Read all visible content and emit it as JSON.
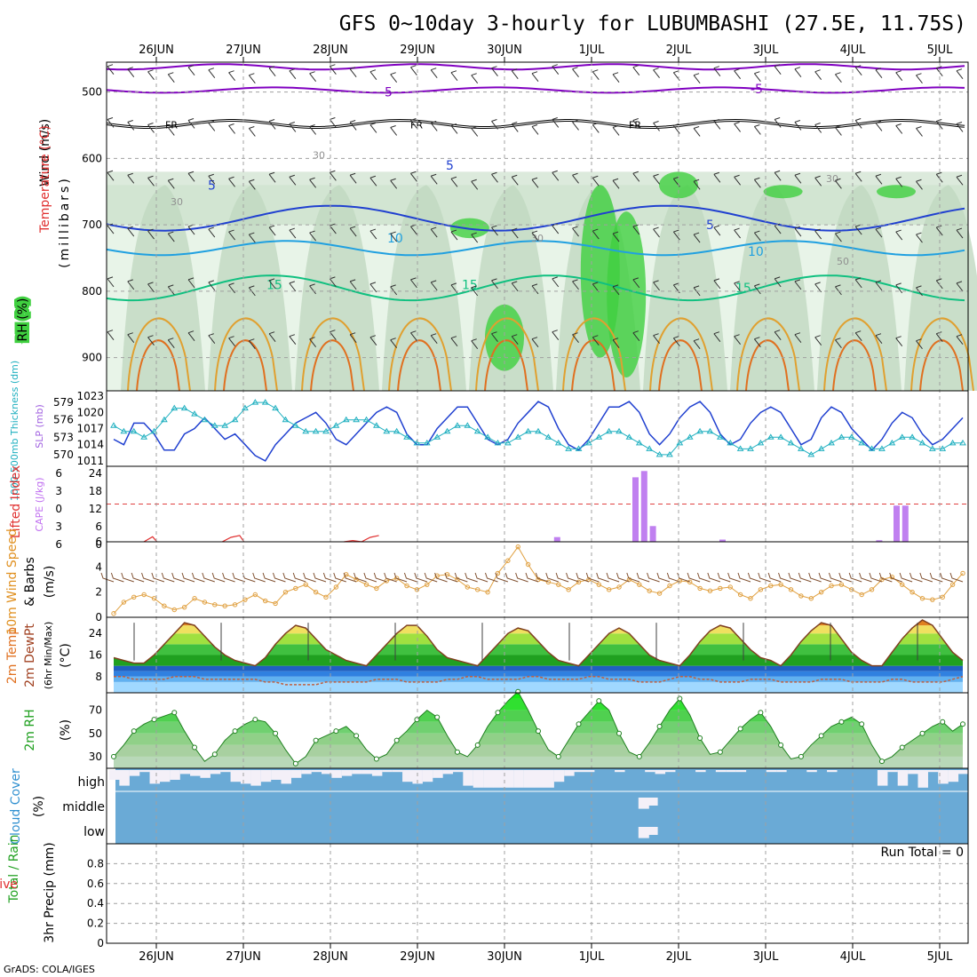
{
  "header": {
    "title": "GFS 0~10day 3-hourly for LUBUMBASHI (27.5E, 11.75S)",
    "credit": "GrADS: COLA/IGES",
    "dates": [
      "26JUN",
      "27JUN",
      "28JUN",
      "29JUN",
      "30JUN",
      "1JUL",
      "2JUL",
      "3JUL",
      "4JUL",
      "5JUL"
    ]
  },
  "colors": {
    "frame": "#000000",
    "grid": "#a0a0a0",
    "purple": "#8000c0",
    "freezing": "#000000",
    "blue_dark": "#2040d0",
    "blue_mid": "#20a0e0",
    "green_contour": "#10c080",
    "orange_contour": "#e0a030",
    "rh_light": "#e8f4e8",
    "rh_mid": "#c0d8c0",
    "rh_green": "#40d040",
    "slp": "#2040d0",
    "thickness": "#20b0c0",
    "cape": "#c080f0",
    "li": "#e03030",
    "wind10m": "#e0a040",
    "barb": "#805030",
    "temp_fill": "#40c040",
    "dew_fill": "#3080e0",
    "rh2m": "#40c040",
    "cloud_sky": "#6aaad6",
    "cloud_cover": "#f4f0f8"
  },
  "panels": {
    "upper": {
      "ylabel_wind": "Wind (m/s)",
      "ylabel_temp": "Temperature (°C)",
      "ylabel_rh": "RH (%)",
      "ylabel_p": "(millibars)",
      "pressure_ticks": [
        "500",
        "600",
        "700",
        "800",
        "900"
      ],
      "contour_labels": {
        "t_m5": "-5",
        "t_5": "5",
        "t_10": "10",
        "t_15": "15",
        "fr": "FR",
        "rh30": "30",
        "rh50": "50"
      }
    },
    "slp": {
      "ylabel_slp": "SLP (mb)",
      "ylabel_thk": "1000-500mb Thickness (dm)",
      "left_ticks": [
        "579",
        "576",
        "573",
        "570"
      ],
      "right_ticks": [
        "1023",
        "1020",
        "1017",
        "1014",
        "1011"
      ]
    },
    "cape": {
      "ylabel_cape": "CAPE (J/kg)",
      "ylabel_li": "Lifted Index",
      "left_ticks": [
        "6",
        "3",
        "0",
        "3",
        "6"
      ],
      "right_ticks": [
        "24",
        "18",
        "12",
        "6",
        "0"
      ]
    },
    "wind": {
      "ylabel_speed": "10m Wind Speed",
      "ylabel_barbs": "& Barbs",
      "ylabel_unit": "(m/s)",
      "ticks": [
        "6",
        "4",
        "2",
        "0"
      ]
    },
    "temp": {
      "ylabel_a": "2m Temp",
      "ylabel_b": "2m DewPt",
      "ylabel_c": "(6hr Min/Max)",
      "ylabel_unit": "(°C)",
      "ticks": [
        "24",
        "16",
        "8"
      ]
    },
    "rh": {
      "ylabel": "2m RH",
      "ylabel_unit": "(%)",
      "ticks": [
        "70",
        "50",
        "30"
      ]
    },
    "cloud": {
      "ylabel": "Cloud Cover",
      "ylabel_unit": "(%)",
      "layers": [
        "high",
        "middle",
        "low"
      ]
    },
    "precip": {
      "ylabel_a": "Total / Rain",
      "ylabel_b": "Convective",
      "ylabel_c": "3hr Precip (mm)",
      "ticks": [
        "0.8",
        "0.6",
        "0.4",
        "0.2",
        "0"
      ],
      "run_total": "Run Total = 0"
    }
  },
  "chart_data": [
    {
      "type": "line",
      "title": "Wind / Temperature / RH cross-section",
      "y_units": "mb",
      "ylim": [
        950,
        450
      ],
      "series": [
        {
          "name": "-5 °C isotherm",
          "level_approx": 500
        },
        {
          "name": "FR (0 °C)",
          "level_approx": 550
        },
        {
          "name": "5 °C isotherm",
          "level_approx": 690
        },
        {
          "name": "10 °C isotherm",
          "level_approx": 730
        },
        {
          "name": "15 °C isotherm",
          "level_approx": 790
        }
      ]
    },
    {
      "type": "line",
      "title": "SLP and 1000-500mb Thickness",
      "series": [
        {
          "name": "SLP (mb)",
          "ylim": [
            1011,
            1023
          ],
          "values": [
            1015,
            1014,
            1018,
            1018,
            1016,
            1013,
            1013,
            1016,
            1017,
            1019,
            1017,
            1015,
            1016,
            1014,
            1012,
            1011,
            1014,
            1016,
            1018,
            1019,
            1020,
            1018,
            1015,
            1014,
            1016,
            1018,
            1020,
            1021,
            1020,
            1016,
            1014,
            1014,
            1017,
            1019,
            1021,
            1021,
            1018,
            1015,
            1014,
            1015,
            1018,
            1020,
            1022,
            1021,
            1017,
            1014,
            1013,
            1015,
            1018,
            1021,
            1021,
            1022,
            1020,
            1016,
            1014,
            1016,
            1019,
            1021,
            1022,
            1020,
            1016,
            1014,
            1015,
            1018,
            1020,
            1021,
            1020,
            1017,
            1014,
            1015,
            1019,
            1021,
            1020,
            1017,
            1015,
            1013,
            1015,
            1018,
            1020,
            1019,
            1016,
            1014,
            1015,
            1017,
            1019
          ]
        },
        {
          "name": "Thickness (dm)",
          "ylim": [
            569,
            580
          ],
          "values": [
            575,
            574,
            574,
            573,
            574,
            576,
            578,
            578,
            577,
            576,
            575,
            575,
            576,
            578,
            579,
            579,
            578,
            576,
            575,
            574,
            574,
            574,
            575,
            576,
            576,
            576,
            575,
            574,
            574,
            573,
            572,
            572,
            573,
            574,
            575,
            575,
            574,
            573,
            572,
            572,
            573,
            574,
            574,
            573,
            572,
            571,
            571,
            572,
            573,
            574,
            574,
            573,
            572,
            571,
            570,
            570,
            572,
            573,
            574,
            574,
            573,
            572,
            571,
            571,
            572,
            573,
            573,
            572,
            571,
            570,
            571,
            572,
            573,
            573,
            572,
            571,
            571,
            572,
            573,
            573,
            572,
            571,
            571,
            572,
            572
          ]
        }
      ]
    },
    {
      "type": "bar",
      "title": "CAPE and Lifted Index",
      "series": [
        {
          "name": "CAPE (J/kg)",
          "ylim": [
            0,
            24
          ],
          "bars": [
            {
              "day": 4.6,
              "value": 1.5
            },
            {
              "day": 5.5,
              "value": 20.5
            },
            {
              "day": 5.6,
              "value": 22.5
            },
            {
              "day": 5.7,
              "value": 5
            },
            {
              "day": 6.5,
              "value": 0.7
            },
            {
              "day": 8.3,
              "value": 0.5
            },
            {
              "day": 8.5,
              "value": 11.5
            },
            {
              "day": 8.6,
              "value": 11.5
            }
          ]
        },
        {
          "name": "Lifted Index",
          "ylim": [
            6,
            -6
          ],
          "segments": [
            [
              0.0,
              6
            ],
            [
              0.1,
              5.2
            ],
            [
              0.15,
              6
            ],
            [
              0.9,
              6
            ],
            [
              1.0,
              5.3
            ],
            [
              1.1,
              5
            ],
            [
              1.15,
              6
            ],
            [
              2.0,
              5.8
            ],
            [
              2.1,
              6
            ],
            [
              2.3,
              6
            ],
            [
              2.4,
              5.8
            ],
            [
              2.5,
              6
            ],
            [
              2.6,
              5.3
            ],
            [
              2.7,
              5
            ]
          ]
        }
      ]
    },
    {
      "type": "line",
      "title": "10m Wind Speed",
      "ylim": [
        0,
        6
      ],
      "values": [
        0.3,
        1.2,
        1.6,
        1.8,
        1.5,
        0.9,
        0.6,
        0.8,
        1.5,
        1.2,
        1.0,
        0.9,
        1.0,
        1.4,
        1.8,
        1.3,
        1.1,
        2.0,
        2.3,
        2.6,
        2.0,
        1.6,
        2.4,
        3.4,
        3.0,
        2.6,
        2.3,
        2.9,
        3.1,
        2.5,
        2.2,
        2.6,
        3.3,
        3.4,
        3.0,
        2.4,
        2.2,
        2.0,
        3.5,
        4.5,
        5.6,
        4.2,
        3.0,
        2.8,
        2.6,
        2.2,
        2.8,
        3.0,
        2.6,
        2.2,
        2.4,
        3.0,
        2.6,
        2.1,
        1.9,
        2.5,
        2.9,
        2.8,
        2.3,
        2.1,
        2.3,
        2.4,
        1.8,
        1.5,
        2.2,
        2.5,
        2.6,
        2.2,
        1.7,
        1.5,
        2.0,
        2.5,
        2.6,
        2.2,
        1.8,
        2.2,
        3.0,
        3.2,
        2.6,
        2.0,
        1.5,
        1.4,
        1.6,
        2.6,
        3.5
      ]
    },
    {
      "type": "area",
      "title": "2m Temp / DewPt",
      "ylim": [
        2,
        30
      ],
      "series": [
        {
          "name": "2m Temp",
          "values": [
            15,
            14,
            13,
            13,
            16,
            20,
            24,
            28,
            27,
            23,
            19,
            16,
            14,
            13,
            12,
            15,
            20,
            24,
            27,
            26,
            22,
            18,
            16,
            14,
            13,
            12,
            16,
            20,
            24,
            27,
            27,
            23,
            18,
            15,
            14,
            13,
            12,
            16,
            20,
            24,
            26,
            25,
            21,
            17,
            14,
            13,
            12,
            16,
            20,
            24,
            26,
            24,
            20,
            16,
            14,
            13,
            12,
            16,
            21,
            25,
            27,
            26,
            22,
            18,
            15,
            14,
            12,
            16,
            21,
            25,
            28,
            27,
            22,
            17,
            14,
            12,
            12,
            17,
            22,
            26,
            29,
            27,
            22,
            17,
            14
          ]
        },
        {
          "name": "2m DewPt",
          "values": [
            8,
            8,
            7,
            7,
            7,
            7,
            8,
            8,
            8,
            7,
            7,
            7,
            7,
            7,
            7,
            6,
            6,
            5,
            5,
            5,
            5,
            6,
            6,
            6,
            6,
            6,
            7,
            7,
            7,
            6,
            6,
            6,
            6,
            7,
            7,
            8,
            8,
            7,
            7,
            7,
            7,
            8,
            8,
            7,
            7,
            7,
            7,
            8,
            8,
            7,
            7,
            7,
            6,
            6,
            6,
            7,
            8,
            8,
            7,
            7,
            6,
            6,
            6,
            7,
            7,
            7,
            6,
            6,
            6,
            6,
            7,
            7,
            7,
            6,
            6,
            6,
            6,
            7,
            7,
            6,
            6,
            6,
            6,
            7,
            8
          ]
        }
      ]
    },
    {
      "type": "area",
      "title": "2m RH",
      "ylim": [
        20,
        85
      ],
      "values": [
        30,
        40,
        52,
        58,
        62,
        65,
        68,
        52,
        38,
        26,
        32,
        44,
        52,
        58,
        62,
        60,
        50,
        36,
        24,
        30,
        44,
        48,
        52,
        56,
        48,
        36,
        28,
        32,
        44,
        52,
        62,
        70,
        64,
        48,
        34,
        30,
        40,
        56,
        68,
        78,
        86,
        70,
        52,
        36,
        30,
        44,
        58,
        68,
        78,
        70,
        50,
        34,
        30,
        42,
        56,
        70,
        80,
        66,
        46,
        32,
        34,
        44,
        54,
        62,
        68,
        56,
        40,
        28,
        30,
        40,
        48,
        56,
        60,
        64,
        58,
        40,
        26,
        30,
        38,
        44,
        50,
        56,
        60,
        52,
        58
      ]
    },
    {
      "type": "bar",
      "title": "Cloud Cover (%)",
      "series": [
        {
          "name": "high",
          "note": "high cloud fraction per 3h step (0-1)"
        },
        {
          "name": "middle",
          "note": "mostly clear; brief ~60% near 1JUL"
        },
        {
          "name": "low",
          "note": "mostly clear; brief ~60% near 1JUL"
        }
      ]
    },
    {
      "type": "bar",
      "title": "3hr Precip (mm)",
      "ylim": [
        0,
        1
      ],
      "values": [],
      "run_total": 0
    }
  ]
}
